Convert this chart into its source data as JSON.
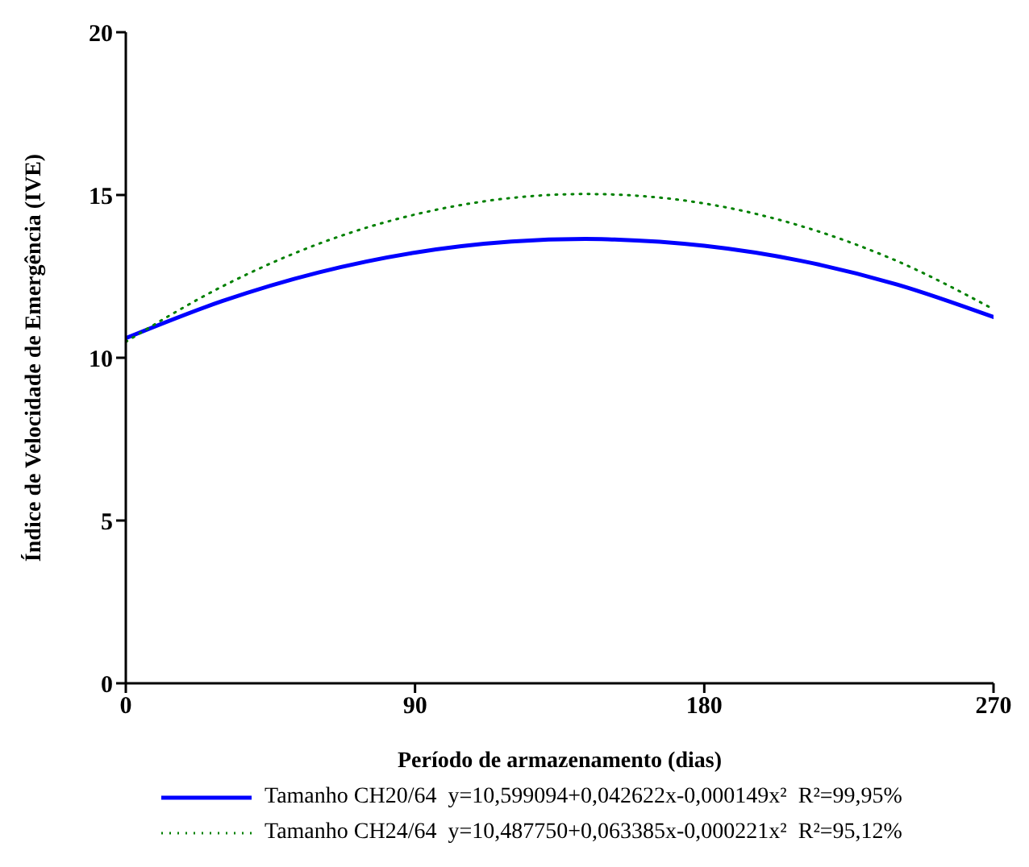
{
  "chart_data": {
    "type": "line",
    "xlabel": "Período de armazenamento (dias)",
    "ylabel": "Índice de Velocidade de Emergência (IVE)",
    "x": [
      0,
      30,
      60,
      90,
      120,
      143,
      150,
      180,
      210,
      240,
      270
    ],
    "series": [
      {
        "name": "Tamanho CH20/64  y=10,599094+0,042622x-0,000149x²  R²=99,95%",
        "color": "#0000ff",
        "line_style": "solid",
        "values": [
          10.6,
          11.74,
          12.62,
          13.23,
          13.57,
          13.65,
          13.64,
          13.44,
          12.98,
          12.25,
          11.25
        ]
      },
      {
        "name": "Tamanho CH24/64  y=10,487750+0,063385x-0,000221x²  R²=95,12%",
        "color": "#008000",
        "line_style": "dotted",
        "values": [
          10.49,
          12.19,
          13.5,
          14.4,
          14.91,
          15.03,
          15.02,
          14.74,
          14.05,
          12.97,
          11.49
        ]
      }
    ],
    "xlim": [
      0,
      270
    ],
    "xticks": [
      0,
      90,
      180,
      270
    ],
    "ylim": [
      0,
      20
    ],
    "yticks": [
      0,
      5,
      10,
      15,
      20
    ],
    "grid": false,
    "legend": "bottom",
    "marker": "none"
  }
}
